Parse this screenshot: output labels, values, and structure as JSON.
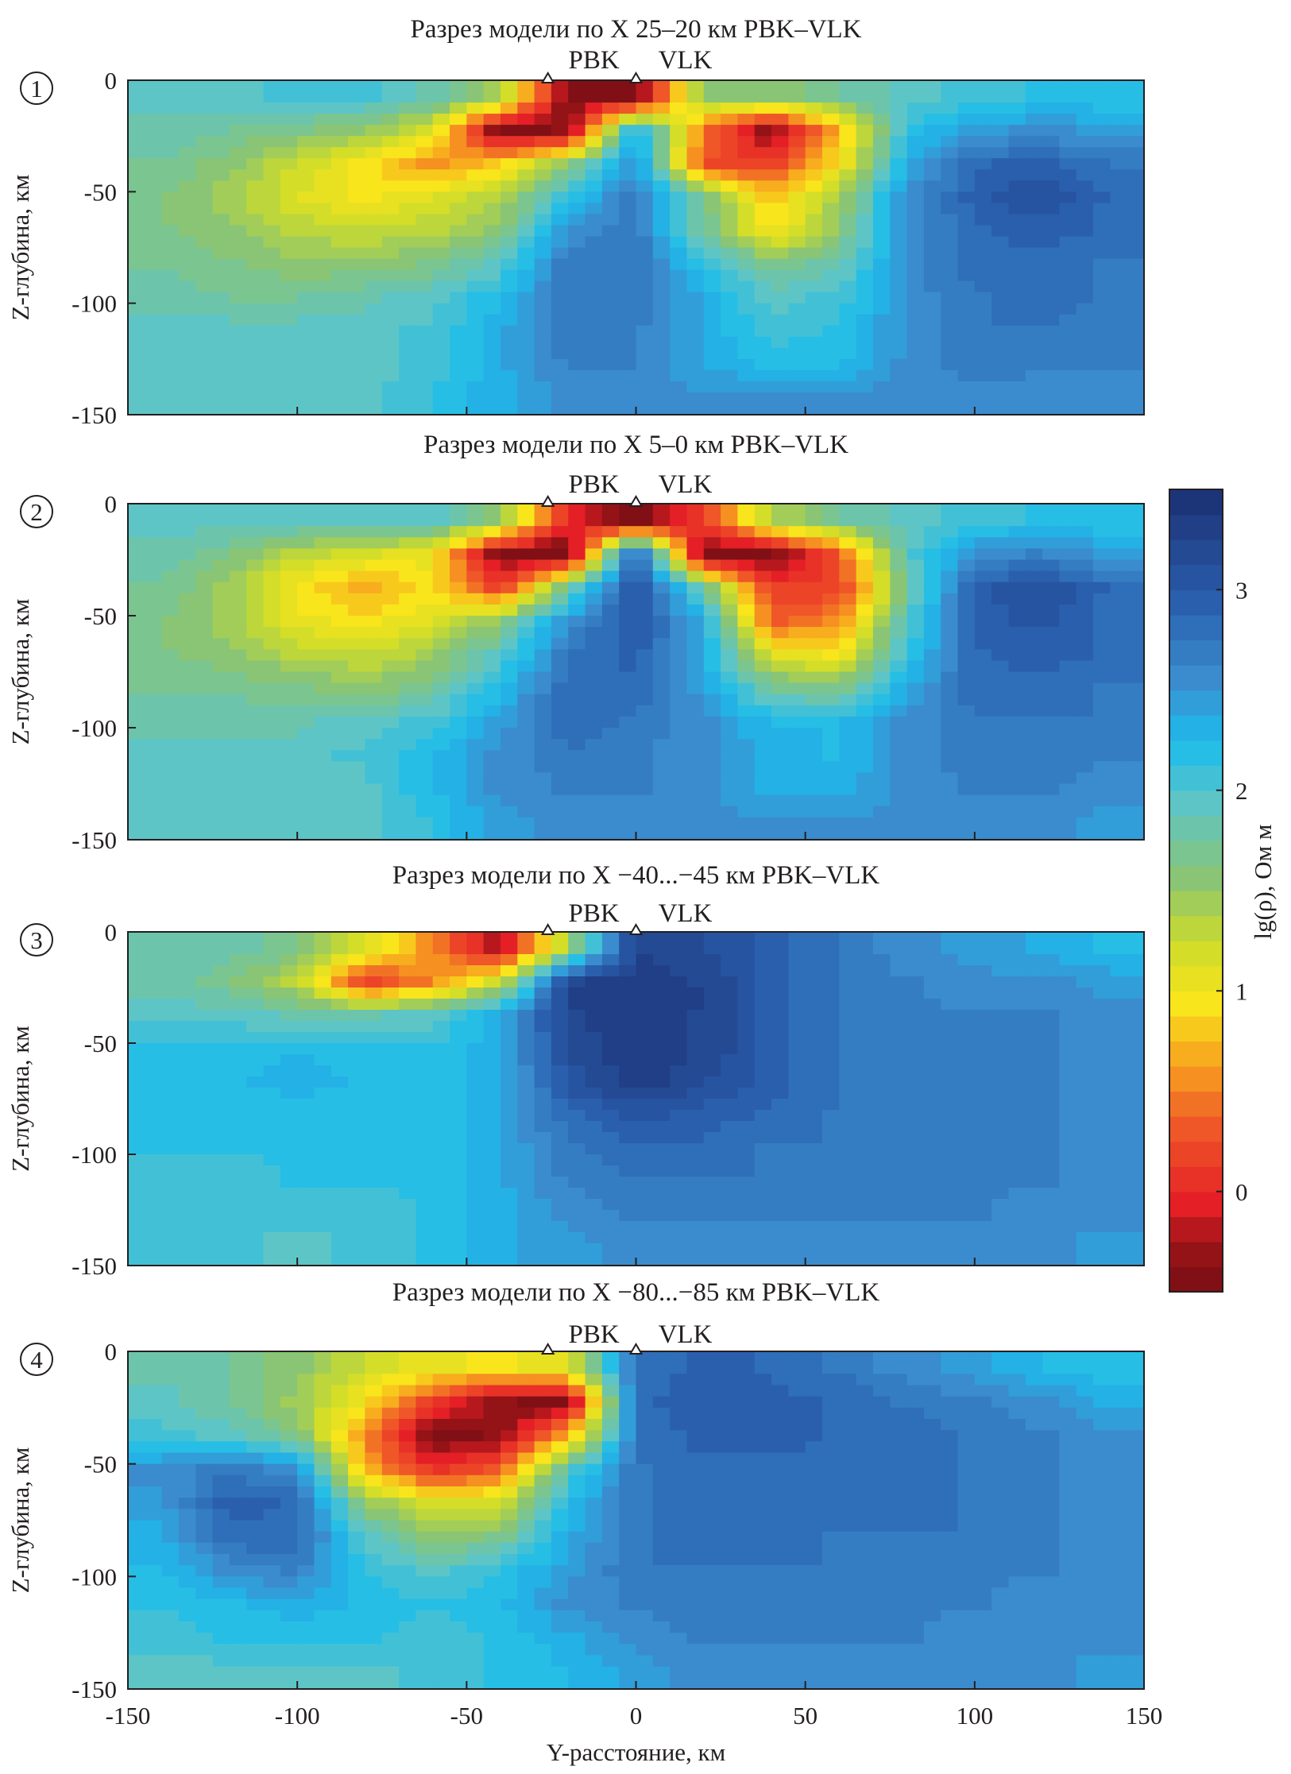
{
  "chart_data": {
    "type": "heatmap",
    "x_axis": {
      "label": "Y-расстояние, км",
      "range": [
        -150,
        150
      ],
      "ticks": [
        -150,
        -100,
        -50,
        0,
        50,
        100,
        150
      ]
    },
    "y_axis": {
      "label": "Z-глубина, км",
      "range": [
        -150,
        0
      ],
      "ticks": [
        0,
        -50,
        -100,
        -150
      ]
    },
    "grid_x_centers_km": [
      -140,
      -120,
      -100,
      -80,
      -60,
      -40,
      -20,
      0,
      20,
      40,
      60,
      80,
      100,
      120,
      140
    ],
    "grid_depth_centers_km": [
      -7.5,
      -22.5,
      -37.5,
      -52.5,
      -67.5,
      -82.5,
      -97.5,
      -112.5,
      -127.5,
      -142.5
    ],
    "stations": [
      {
        "name": "PBK",
        "y": -26
      },
      {
        "name": "VLK",
        "y": 0
      }
    ],
    "colorbar": {
      "label": "lg(ρ), Ом м",
      "range": [
        -0.5,
        3.5
      ],
      "ticks": [
        0,
        1,
        2,
        3
      ]
    },
    "panels": [
      {
        "number": "1",
        "title": "Разрез модели по X 25–20 км PBK–VLK",
        "values": [
          [
            2.0,
            2.0,
            2.1,
            2.1,
            1.9,
            1.5,
            -0.4,
            -0.4,
            1.6,
            1.6,
            1.8,
            2.0,
            2.1,
            2.2,
            2.2
          ],
          [
            1.9,
            1.8,
            1.7,
            1.6,
            1.2,
            -0.4,
            -0.3,
            2.4,
            0.5,
            -0.3,
            0.8,
            2.2,
            2.5,
            2.6,
            2.5
          ],
          [
            1.8,
            1.6,
            1.3,
            1.0,
            0.6,
            0.9,
            1.6,
            2.6,
            0.3,
            0.2,
            1.0,
            2.4,
            2.9,
            3.0,
            2.8
          ],
          [
            1.7,
            1.5,
            1.2,
            1.0,
            1.2,
            1.4,
            2.2,
            2.8,
            1.8,
            0.8,
            1.5,
            2.6,
            3.0,
            3.2,
            2.9
          ],
          [
            1.7,
            1.6,
            1.4,
            1.3,
            1.4,
            1.6,
            2.6,
            2.8,
            1.8,
            1.0,
            1.6,
            2.6,
            2.9,
            3.0,
            2.9
          ],
          [
            1.8,
            1.7,
            1.6,
            1.6,
            1.7,
            2.0,
            2.8,
            2.8,
            2.2,
            1.7,
            1.9,
            2.6,
            2.9,
            2.9,
            2.8
          ],
          [
            1.9,
            1.8,
            1.8,
            1.9,
            2.0,
            2.3,
            2.8,
            2.8,
            2.4,
            2.0,
            2.1,
            2.6,
            2.8,
            2.9,
            2.8
          ],
          [
            2.0,
            2.0,
            2.0,
            2.0,
            2.1,
            2.4,
            2.8,
            2.7,
            2.4,
            2.1,
            2.2,
            2.6,
            2.8,
            2.8,
            2.7
          ],
          [
            2.0,
            2.0,
            2.0,
            2.0,
            2.1,
            2.4,
            2.7,
            2.7,
            2.4,
            2.3,
            2.3,
            2.6,
            2.8,
            2.7,
            2.7
          ],
          [
            2.0,
            2.0,
            2.0,
            2.0,
            2.2,
            2.4,
            2.6,
            2.6,
            2.6,
            2.6,
            2.6,
            2.6,
            2.6,
            2.6,
            2.6
          ]
        ]
      },
      {
        "number": "2",
        "title": "Разрез модели по X 5–0 км PBK–VLK",
        "values": [
          [
            2.0,
            2.0,
            2.0,
            2.0,
            2.0,
            1.6,
            0.0,
            -0.4,
            0.2,
            1.4,
            1.8,
            2.0,
            2.1,
            2.2,
            2.2
          ],
          [
            1.9,
            1.7,
            1.4,
            1.2,
            1.1,
            -0.4,
            -0.4,
            3.0,
            -0.4,
            -0.4,
            0.4,
            2.0,
            2.6,
            2.7,
            2.5
          ],
          [
            1.8,
            1.5,
            1.0,
            0.7,
            1.0,
            0.2,
            1.8,
            3.2,
            1.8,
            0.2,
            0.2,
            1.8,
            3.0,
            3.2,
            2.9
          ],
          [
            1.7,
            1.5,
            1.1,
            1.0,
            1.2,
            1.6,
            2.6,
            3.1,
            2.4,
            0.4,
            0.6,
            2.0,
            3.0,
            3.1,
            2.9
          ],
          [
            1.7,
            1.6,
            1.4,
            1.3,
            1.5,
            2.0,
            2.8,
            3.0,
            2.4,
            1.2,
            1.0,
            2.2,
            2.9,
            3.0,
            2.9
          ],
          [
            1.8,
            1.8,
            1.7,
            1.6,
            1.8,
            2.3,
            2.9,
            2.9,
            2.5,
            1.8,
            1.7,
            2.4,
            2.9,
            2.9,
            2.8
          ],
          [
            1.9,
            1.9,
            1.9,
            2.0,
            2.1,
            2.5,
            2.9,
            2.8,
            2.6,
            2.3,
            2.3,
            2.6,
            2.8,
            2.8,
            2.8
          ],
          [
            2.0,
            2.0,
            2.0,
            2.1,
            2.3,
            2.6,
            2.8,
            2.7,
            2.6,
            2.4,
            2.3,
            2.6,
            2.8,
            2.8,
            2.7
          ],
          [
            2.0,
            2.0,
            2.0,
            2.0,
            2.3,
            2.6,
            2.7,
            2.7,
            2.6,
            2.4,
            2.4,
            2.6,
            2.7,
            2.7,
            2.6
          ],
          [
            2.0,
            2.0,
            2.0,
            2.0,
            2.2,
            2.5,
            2.6,
            2.6,
            2.6,
            2.6,
            2.6,
            2.6,
            2.6,
            2.6,
            2.5
          ]
        ]
      },
      {
        "number": "3",
        "title": "Разрез модели по X −40...−45 км PBK–VLK",
        "values": [
          [
            1.9,
            1.9,
            1.7,
            1.2,
            0.6,
            -0.2,
            1.5,
            3.3,
            3.2,
            3.0,
            2.8,
            2.6,
            2.5,
            2.4,
            2.3
          ],
          [
            1.9,
            1.7,
            1.4,
            0.2,
            0.6,
            1.3,
            3.3,
            3.4,
            3.3,
            3.0,
            2.8,
            2.7,
            2.6,
            2.6,
            2.5
          ],
          [
            2.0,
            2.0,
            1.9,
            1.9,
            2.0,
            2.4,
            3.3,
            3.4,
            3.3,
            3.0,
            2.8,
            2.7,
            2.7,
            2.7,
            2.6
          ],
          [
            2.2,
            2.2,
            2.3,
            2.2,
            2.2,
            2.4,
            3.2,
            3.4,
            3.3,
            3.0,
            2.8,
            2.7,
            2.7,
            2.7,
            2.6
          ],
          [
            2.2,
            2.3,
            2.4,
            2.3,
            2.2,
            2.4,
            3.1,
            3.4,
            3.2,
            3.0,
            2.8,
            2.7,
            2.7,
            2.7,
            2.6
          ],
          [
            2.2,
            2.2,
            2.2,
            2.2,
            2.2,
            2.4,
            2.9,
            3.1,
            3.0,
            2.9,
            2.8,
            2.7,
            2.7,
            2.7,
            2.6
          ],
          [
            2.2,
            2.2,
            2.2,
            2.2,
            2.2,
            2.4,
            2.8,
            2.9,
            2.9,
            2.8,
            2.8,
            2.7,
            2.7,
            2.7,
            2.6
          ],
          [
            2.1,
            2.1,
            2.2,
            2.2,
            2.2,
            2.4,
            2.7,
            2.8,
            2.8,
            2.8,
            2.7,
            2.7,
            2.7,
            2.7,
            2.6
          ],
          [
            2.1,
            2.1,
            2.1,
            2.1,
            2.2,
            2.4,
            2.6,
            2.7,
            2.7,
            2.7,
            2.7,
            2.7,
            2.7,
            2.6,
            2.6
          ],
          [
            2.1,
            2.1,
            2.0,
            2.1,
            2.2,
            2.4,
            2.5,
            2.6,
            2.6,
            2.6,
            2.6,
            2.6,
            2.6,
            2.6,
            2.5
          ]
        ]
      },
      {
        "number": "4",
        "title": "Разрез модели по X −80...−85 км PBK–VLK",
        "values": [
          [
            1.9,
            1.8,
            1.6,
            1.3,
            1.1,
            1.0,
            1.2,
            2.8,
            3.0,
            2.9,
            2.8,
            2.6,
            2.5,
            2.3,
            2.2
          ],
          [
            2.0,
            1.8,
            1.5,
            1.0,
            0.2,
            -0.3,
            -0.4,
            2.9,
            3.0,
            3.0,
            2.9,
            2.8,
            2.7,
            2.6,
            2.4
          ],
          [
            2.1,
            2.0,
            1.7,
            0.6,
            -0.4,
            -0.3,
            0.8,
            2.8,
            3.0,
            3.0,
            2.9,
            2.9,
            2.8,
            2.7,
            2.6
          ],
          [
            2.6,
            2.8,
            2.6,
            0.8,
            0.1,
            0.4,
            2.0,
            2.8,
            2.9,
            2.9,
            2.9,
            2.9,
            2.8,
            2.7,
            2.6
          ],
          [
            2.5,
            3.0,
            2.9,
            1.6,
            1.2,
            1.3,
            2.3,
            2.8,
            2.9,
            2.9,
            2.9,
            2.9,
            2.8,
            2.7,
            2.6
          ],
          [
            2.4,
            2.9,
            2.9,
            2.0,
            1.6,
            1.7,
            2.4,
            2.8,
            2.9,
            2.9,
            2.8,
            2.8,
            2.8,
            2.7,
            2.6
          ],
          [
            2.3,
            2.6,
            2.7,
            2.2,
            2.0,
            2.2,
            2.5,
            2.8,
            2.8,
            2.8,
            2.8,
            2.8,
            2.7,
            2.7,
            2.6
          ],
          [
            2.2,
            2.3,
            2.4,
            2.3,
            2.2,
            2.3,
            2.6,
            2.7,
            2.8,
            2.8,
            2.7,
            2.7,
            2.7,
            2.6,
            2.6
          ],
          [
            2.1,
            2.2,
            2.2,
            2.2,
            2.1,
            2.2,
            2.4,
            2.6,
            2.7,
            2.7,
            2.7,
            2.7,
            2.6,
            2.6,
            2.6
          ],
          [
            2.0,
            2.0,
            2.0,
            2.0,
            2.1,
            2.2,
            2.3,
            2.5,
            2.6,
            2.6,
            2.6,
            2.6,
            2.6,
            2.6,
            2.5
          ]
        ]
      }
    ],
    "colormap": [
      [
        -0.5,
        "#6e0d12"
      ],
      [
        -0.2,
        "#9a1418"
      ],
      [
        0.0,
        "#e41f26"
      ],
      [
        0.4,
        "#f05a28"
      ],
      [
        0.7,
        "#f7a21f"
      ],
      [
        1.0,
        "#f9e51b"
      ],
      [
        1.3,
        "#cddc2a"
      ],
      [
        1.6,
        "#8cc56f"
      ],
      [
        2.0,
        "#5ec5c6"
      ],
      [
        2.3,
        "#1cbcec"
      ],
      [
        2.6,
        "#3b8fd0"
      ],
      [
        3.0,
        "#2a5fae"
      ],
      [
        3.5,
        "#1c3478"
      ]
    ]
  }
}
